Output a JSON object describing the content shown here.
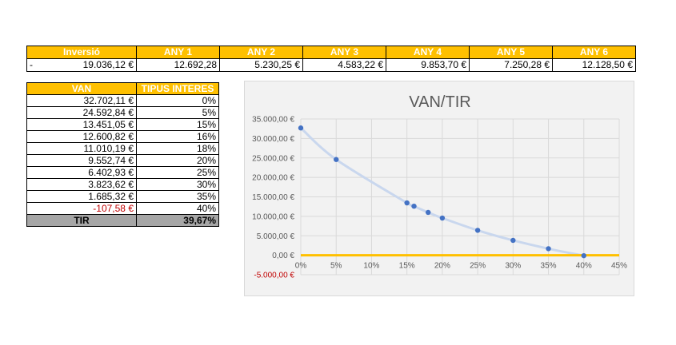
{
  "cashflow": {
    "headers": [
      "Inversió",
      "ANY 1",
      "ANY 2",
      "ANY 3",
      "ANY 4",
      "ANY 5",
      "ANY 6"
    ],
    "sign": "-",
    "values": [
      "19.036,12 €",
      "12.692,28",
      "5.230,25 €",
      "4.583,22 €",
      "9.853,70 €",
      "7.250,28 €",
      "12.128,50 €"
    ]
  },
  "van_table": {
    "headers": [
      "VAN",
      "TIPUS INTERES"
    ],
    "rows": [
      {
        "van": "32.702,11 €",
        "rate": "0%"
      },
      {
        "van": "24.592,84 €",
        "rate": "5%"
      },
      {
        "van": "13.451,05 €",
        "rate": "15%"
      },
      {
        "van": "12.600,82 €",
        "rate": "16%"
      },
      {
        "van": "11.010,19 €",
        "rate": "18%"
      },
      {
        "van": "9.552,74 €",
        "rate": "20%"
      },
      {
        "van": "6.402,93 €",
        "rate": "25%"
      },
      {
        "van": "3.823,62 €",
        "rate": "30%"
      },
      {
        "van": "1.685,32 €",
        "rate": "35%"
      },
      {
        "van": "-107,58 €",
        "rate": "40%"
      }
    ],
    "tir_label": "TIR",
    "tir_value": "39,67%"
  },
  "chart_data": {
    "type": "scatter",
    "title": "VAN/TIR",
    "xlabel": "",
    "ylabel": "",
    "xlim": [
      0,
      45
    ],
    "ylim": [
      -5000,
      35000
    ],
    "x_ticks": [
      0,
      5,
      10,
      15,
      20,
      25,
      30,
      35,
      40,
      45
    ],
    "x_tick_labels": [
      "0%",
      "5%",
      "10%",
      "15%",
      "20%",
      "25%",
      "30%",
      "35%",
      "40%",
      "45%"
    ],
    "y_ticks": [
      35000,
      30000,
      25000,
      20000,
      15000,
      10000,
      5000,
      0,
      -5000
    ],
    "y_tick_labels": [
      "35.000,00 €",
      "30.000,00 €",
      "25.000,00 €",
      "20.000,00 €",
      "15.000,00 €",
      "10.000,00 €",
      "5.000,00 €",
      "0,00 €",
      "-5.000,00 €"
    ],
    "grid": true,
    "smooth_line": true,
    "x": [
      0,
      5,
      15,
      16,
      18,
      20,
      25,
      30,
      35,
      40
    ],
    "y": [
      32702.11,
      24592.84,
      13451.05,
      12600.82,
      11010.19,
      9552.74,
      6402.93,
      3823.62,
      1685.32,
      -107.58
    ],
    "colors": {
      "points": "#4472c4",
      "trend": "#c9d7ee",
      "zero_axis": "#ffc000",
      "grid": "#d9d9d9",
      "negative_label": "#c00000"
    }
  }
}
